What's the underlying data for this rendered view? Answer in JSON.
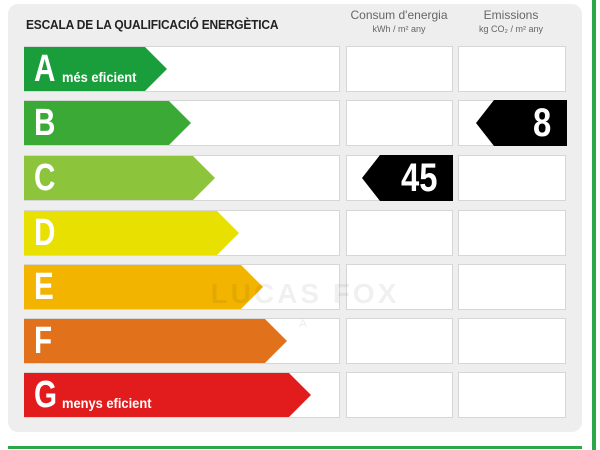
{
  "title": "ESCALA DE LA QUALIFICACIÓ ENERGÈTICA",
  "columns": {
    "consum": {
      "label": "Consum d'energia",
      "unit": "kWh / m² any"
    },
    "emissions": {
      "label": "Emissions",
      "unit": "kg CO₂ / m² any"
    }
  },
  "classes": [
    {
      "letter": "A",
      "label": "més eficient",
      "color": "#1a9e3c"
    },
    {
      "letter": "B",
      "label": "",
      "color": "#3aa935"
    },
    {
      "letter": "C",
      "label": "",
      "color": "#8cc43c"
    },
    {
      "letter": "D",
      "label": "",
      "color": "#e8e000"
    },
    {
      "letter": "E",
      "label": "",
      "color": "#f3b400"
    },
    {
      "letter": "F",
      "label": "",
      "color": "#e2711b"
    },
    {
      "letter": "G",
      "label": "menys eficient",
      "color": "#e21c1c"
    }
  ],
  "consum_rating": {
    "value": "45",
    "class": "C"
  },
  "emissions_rating": {
    "value": "8",
    "class": "B"
  },
  "watermark": {
    "brand": "LUCAS FOX",
    "sub": "A"
  }
}
